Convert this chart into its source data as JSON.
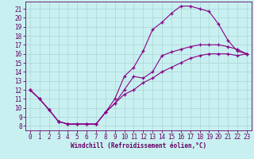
{
  "xlabel": "Windchill (Refroidissement éolien,°C)",
  "xlim": [
    -0.5,
    23.5
  ],
  "ylim": [
    7.5,
    21.8
  ],
  "xticks": [
    0,
    1,
    2,
    3,
    4,
    5,
    6,
    7,
    8,
    9,
    10,
    11,
    12,
    13,
    14,
    15,
    16,
    17,
    18,
    19,
    20,
    21,
    22,
    23
  ],
  "yticks": [
    8,
    9,
    10,
    11,
    12,
    13,
    14,
    15,
    16,
    17,
    18,
    19,
    20,
    21
  ],
  "bg_color": "#c8f0f0",
  "line_color": "#880088",
  "grid_color": "#aad4d4",
  "upper_x": [
    0,
    1,
    2,
    3,
    4,
    5,
    6,
    7,
    8,
    9,
    10,
    11,
    12,
    13,
    14,
    15,
    16,
    17,
    18,
    19,
    20,
    21,
    22,
    23
  ],
  "upper_y": [
    12.0,
    11.0,
    9.8,
    8.5,
    8.2,
    8.2,
    8.2,
    8.2,
    9.5,
    11.0,
    13.5,
    14.5,
    16.3,
    18.7,
    19.5,
    20.5,
    21.3,
    21.3,
    21.0,
    20.7,
    19.3,
    17.5,
    16.3,
    16.0
  ],
  "mid_x": [
    0,
    1,
    2,
    3,
    4,
    5,
    6,
    7,
    8,
    9,
    10,
    11,
    12,
    13,
    14,
    15,
    16,
    17,
    18,
    19,
    20,
    21,
    22,
    23
  ],
  "mid_y": [
    12.0,
    11.0,
    9.8,
    8.5,
    8.2,
    8.2,
    8.2,
    8.2,
    9.5,
    10.5,
    12.0,
    13.5,
    13.3,
    14.0,
    15.8,
    16.2,
    16.5,
    16.8,
    17.0,
    17.0,
    17.0,
    16.8,
    16.5,
    16.0
  ],
  "lower_x": [
    0,
    1,
    2,
    3,
    4,
    5,
    6,
    7,
    8,
    9,
    10,
    11,
    12,
    13,
    14,
    15,
    16,
    17,
    18,
    19,
    20,
    21,
    22,
    23
  ],
  "lower_y": [
    12.0,
    11.0,
    9.8,
    8.5,
    8.2,
    8.2,
    8.2,
    8.2,
    9.5,
    10.5,
    11.5,
    12.0,
    12.8,
    13.3,
    14.0,
    14.5,
    15.0,
    15.5,
    15.8,
    16.0,
    16.0,
    16.0,
    15.8,
    16.0
  ],
  "tick_fontsize": 5.5,
  "xlabel_fontsize": 5.5
}
